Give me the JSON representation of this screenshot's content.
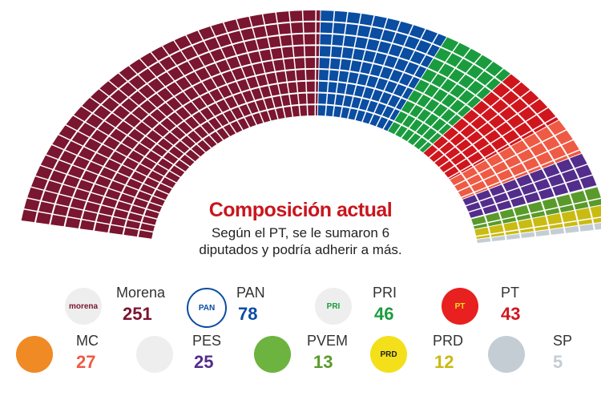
{
  "chart_data": {
    "type": "pie",
    "subtype": "parliament-semicircle",
    "title": "Composición actual",
    "subtitle": "Según el PT, se le sumaron 6 diputados y podría adherir a más.",
    "total": 500,
    "series": [
      {
        "name": "Morena",
        "value": 251,
        "color": "#7a1630"
      },
      {
        "name": "PAN",
        "value": 78,
        "color": "#0a4da1"
      },
      {
        "name": "PRI",
        "value": 46,
        "color": "#1a9c3e"
      },
      {
        "name": "PT",
        "value": 43,
        "color": "#d0161d"
      },
      {
        "name": "MC",
        "value": 27,
        "color": "#ef5a44"
      },
      {
        "name": "PES",
        "value": 25,
        "color": "#532d8c"
      },
      {
        "name": "PVEM",
        "value": 13,
        "color": "#5a9a2b"
      },
      {
        "name": "PRD",
        "value": 12,
        "color": "#c9bb12"
      },
      {
        "name": "SP",
        "value": 5,
        "color": "#c4cdd4"
      }
    ]
  },
  "legend_logos": {
    "Morena": "morena",
    "PAN": "PAN",
    "PRI": "PRI",
    "PT": "PT",
    "MC": "",
    "PES": "",
    "PVEM": "",
    "PRD": "PRD",
    "SP": ""
  }
}
